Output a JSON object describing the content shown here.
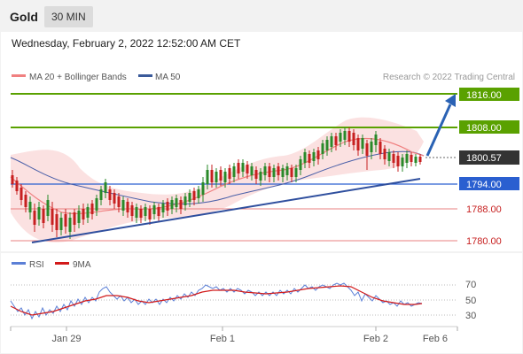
{
  "header": {
    "title": "Gold",
    "period": "30 MIN"
  },
  "timestamp": "Wednesday, February 2, 2022 12:52:00 AM CET",
  "legend": {
    "ma20": "MA 20 + Bollinger Bands",
    "ma50": "MA 50",
    "copyright": "Research © 2022 Trading Central"
  },
  "rsi_legend": {
    "rsi": "RSI",
    "ma": "9MA"
  },
  "colors": {
    "resistance": "#5aa100",
    "support": "#e88080",
    "pivot": "#2a5fd0",
    "current": "#333333",
    "trend": "#2f4f9e",
    "arrow": "#2a62b4",
    "candle": "#2a8a2a",
    "candle_down": "#c72020",
    "ma20": "#f08080",
    "ma50": "#4a5fa8",
    "rsi": "#5b7fd6",
    "rsi_ma": "#d21a1a"
  },
  "levels": {
    "r2": "1816.00",
    "r1": "1808.00",
    "current": "1800.57",
    "pivot": "1794.00",
    "s1": "1788.00",
    "s2": "1780.00"
  },
  "rsi_axis": {
    "l70": "70",
    "l50": "50",
    "l30": "30"
  },
  "x_axis": {
    "t1": "Jan 29",
    "t2": "Feb 1",
    "t3": "Feb 2",
    "t4": "Feb 6"
  }
}
